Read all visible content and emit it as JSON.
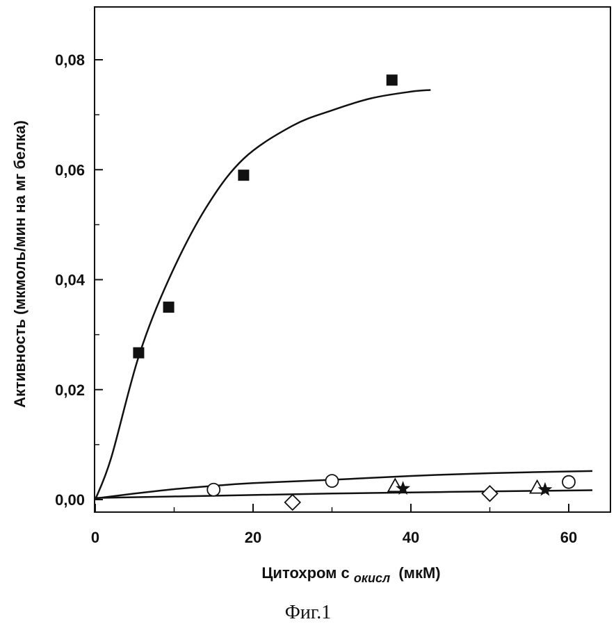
{
  "chart_data": {
    "type": "scatter",
    "xlabel": {
      "main": "Цитохром c",
      "subscript": "окисл",
      "suffix": "(мкМ)"
    },
    "ylabel": "Активность (мкмоль/мин на мг белка)",
    "xlim": [
      0,
      65
    ],
    "ylim": [
      -0.002,
      0.092
    ],
    "x_ticks": [
      0,
      20,
      40,
      60
    ],
    "x_tick_labels": [
      "0",
      "20",
      "40",
      "60"
    ],
    "y_ticks": [
      0.0,
      0.02,
      0.04,
      0.06,
      0.08
    ],
    "y_tick_labels": [
      "0,00",
      "0,02",
      "0,04",
      "0,06",
      "0,08"
    ],
    "grid": false,
    "series": [
      {
        "marker": "filled-square",
        "color": "#111111",
        "points": [
          [
            5.5,
            0.0267
          ],
          [
            9.3,
            0.035
          ],
          [
            18.8,
            0.059
          ],
          [
            37.6,
            0.0763
          ]
        ]
      },
      {
        "marker": "open-circle",
        "color": "#111111",
        "points": [
          [
            15,
            0.0018
          ],
          [
            30,
            0.0034
          ],
          [
            60,
            0.0032
          ]
        ]
      },
      {
        "marker": "open-diamond",
        "color": "#111111",
        "points": [
          [
            25,
            -0.0005
          ],
          [
            50,
            0.0011
          ]
        ]
      },
      {
        "marker": "open-triangle",
        "color": "#111111",
        "points": [
          [
            38,
            0.0025
          ],
          [
            56,
            0.0022
          ]
        ]
      },
      {
        "marker": "filled-star",
        "color": "#111111",
        "points": [
          [
            39,
            0.002
          ],
          [
            57,
            0.0018
          ]
        ]
      }
    ],
    "curves": [
      {
        "style": "solid",
        "color": "#111111",
        "points": [
          [
            0,
            0.0
          ],
          [
            2,
            0.0075
          ],
          [
            5.5,
            0.026
          ],
          [
            9.3,
            0.04
          ],
          [
            14,
            0.053
          ],
          [
            18.8,
            0.062
          ],
          [
            25,
            0.068
          ],
          [
            30,
            0.0708
          ],
          [
            35,
            0.073
          ],
          [
            40,
            0.0742
          ],
          [
            42.5,
            0.0745
          ]
        ]
      },
      {
        "style": "solid",
        "color": "#111111",
        "points": [
          [
            0,
            0.0002
          ],
          [
            5,
            0.0011
          ],
          [
            10,
            0.0019
          ],
          [
            15,
            0.0025
          ],
          [
            20,
            0.003
          ],
          [
            30,
            0.0036
          ],
          [
            40,
            0.0043
          ],
          [
            50,
            0.0048
          ],
          [
            63,
            0.0052
          ]
        ]
      },
      {
        "style": "solid",
        "color": "#111111",
        "points": [
          [
            0,
            0.0003
          ],
          [
            15,
            0.0007
          ],
          [
            30,
            0.0011
          ],
          [
            45,
            0.0014
          ],
          [
            63,
            0.0017
          ]
        ]
      }
    ]
  },
  "caption": "Фиг.1"
}
